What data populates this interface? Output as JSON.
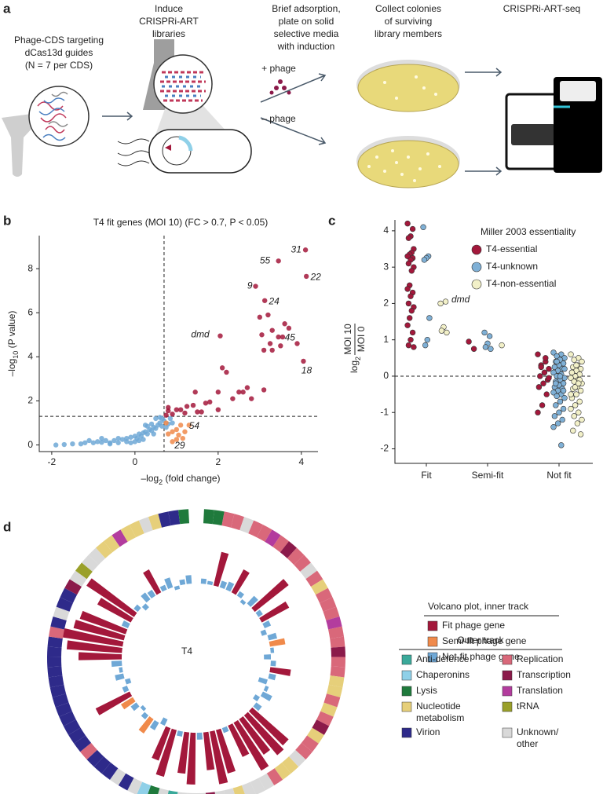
{
  "panel_a": {
    "label": "a",
    "steps": [
      [
        "Phage-CDS targeting",
        "dCas13d guides",
        "(N = 7 per CDS)"
      ],
      [
        "Induce",
        "CRISPRi-ART",
        "libraries"
      ],
      [
        "Brief adsorption,",
        "plate on solid",
        "selective media",
        "with induction"
      ],
      [
        "Collect colonies",
        "of surviving",
        "library members"
      ],
      [
        "CRISPRi-ART-seq"
      ]
    ],
    "plus": "+ phage",
    "minus": "– phage"
  },
  "chart_data": [
    {
      "type": "scatter",
      "panel": "b",
      "title": "T4 fit genes (MOI 10) (FC > 0.7, P < 0.05)",
      "xlabel": [
        "–log",
        "2",
        " (fold change)"
      ],
      "ylabel": [
        "–log",
        "10",
        " (P value)"
      ],
      "xlim": [
        -2.3,
        4.4
      ],
      "ylim": [
        -0.3,
        9.5
      ],
      "xticks": [
        -2,
        0,
        2,
        4
      ],
      "yticks": [
        0,
        2,
        4,
        6,
        8
      ],
      "vline": 0.7,
      "hline": 1.3,
      "series": [
        {
          "color": "#a3183b",
          "x": [
            4.1,
            3.45,
            4.12,
            2.9,
            3.12,
            2.05,
            3.45,
            4.05,
            3.0,
            3.2,
            3.6,
            3.7,
            3.3,
            3.05,
            3.5,
            3.3,
            3.1,
            3.9,
            3.55,
            3.25,
            2.1,
            2.2,
            2.7,
            2.6,
            2.5,
            3.1,
            2.0,
            2.35,
            2.8,
            1.8,
            1.7,
            1.4,
            1.25,
            1.1,
            1.0,
            0.8,
            1.5,
            2.0,
            0.9,
            0.8,
            1.2,
            1.6,
            1.45,
            0.75
          ],
          "y": [
            8.85,
            8.35,
            7.65,
            7.2,
            6.55,
            4.95,
            4.9,
            3.8,
            5.8,
            5.9,
            5.5,
            5.3,
            5.2,
            5.0,
            4.5,
            4.3,
            4.3,
            4.6,
            4.9,
            4.6,
            3.5,
            3.3,
            2.6,
            2.4,
            2.4,
            2.5,
            2.4,
            2.1,
            2.1,
            1.95,
            1.9,
            1.8,
            1.75,
            1.6,
            1.6,
            1.55,
            1.5,
            1.6,
            1.4,
            1.7,
            1.45,
            1.5,
            2.4,
            1.35
          ]
        },
        {
          "color": "#f08a4b",
          "x": [
            1.1,
            1.0,
            0.9,
            1.2,
            0.8,
            1.15,
            1.0,
            0.9,
            1.3,
            0.75,
            1.05
          ],
          "y": [
            0.9,
            0.7,
            0.6,
            0.6,
            0.5,
            0.3,
            0.25,
            0.15,
            0.9,
            1.0,
            0.45
          ]
        },
        {
          "color": "#6fa8d6",
          "x": [
            -1.9,
            -1.7,
            -1.5,
            -1.3,
            -1.2,
            -1.0,
            -0.9,
            -0.8,
            -0.7,
            -0.6,
            -0.5,
            -0.4,
            -0.3,
            -0.2,
            -0.1,
            0,
            0.05,
            0.1,
            0.15,
            0.2,
            0.25,
            0.3,
            0.35,
            0.4,
            0.45,
            0.5,
            0.55,
            0.6,
            0.65,
            0.7,
            0.5,
            0.6,
            0.4,
            0.3,
            -0.2,
            -0.4,
            -0.6,
            0,
            0.2,
            0.1,
            -0.1,
            0.8,
            0.75,
            0.85,
            0.9,
            0.65,
            0.45,
            -0.8,
            -1.1,
            0.25
          ],
          "y": [
            0,
            0.02,
            0.05,
            0.05,
            0.1,
            0.1,
            0.15,
            0.12,
            0.2,
            0.1,
            0.2,
            0.3,
            0.25,
            0.3,
            0.35,
            0.4,
            0.3,
            0.5,
            0.4,
            0.55,
            0.6,
            0.5,
            0.7,
            0.65,
            0.8,
            0.75,
            0.9,
            1.0,
            0.85,
            1.1,
            1.2,
            1.25,
            0.95,
            0.85,
            0.15,
            0.1,
            0.05,
            0.15,
            0.25,
            0.2,
            0.1,
            0.95,
            0.8,
            1.2,
            1.0,
            1.2,
            0.5,
            0.3,
            0.2,
            0.9
          ]
        }
      ],
      "annotations": [
        {
          "text": "31",
          "x": 3.75,
          "y": 8.85,
          "color": "#a3183b"
        },
        {
          "text": "55",
          "x": 3.0,
          "y": 8.35,
          "color": "#a3183b"
        },
        {
          "text": "22",
          "x": 4.22,
          "y": 7.6,
          "color": "#a3183b"
        },
        {
          "text": "9",
          "x": 2.7,
          "y": 7.2,
          "color": "#a3183b"
        },
        {
          "text": "24",
          "x": 3.22,
          "y": 6.5,
          "color": "#a3183b"
        },
        {
          "text": "dmd",
          "x": 1.35,
          "y": 5.0,
          "color": "#a3183b"
        },
        {
          "text": "45",
          "x": 3.6,
          "y": 4.85,
          "color": "#a3183b"
        },
        {
          "text": "18",
          "x": 4.0,
          "y": 3.35,
          "color": "#a3183b"
        },
        {
          "text": "54",
          "x": 1.3,
          "y": 0.85,
          "color": "#f08a4b"
        },
        {
          "text": "29",
          "x": 0.95,
          "y": -0.05,
          "color": "#f08a4b"
        }
      ]
    },
    {
      "type": "strip",
      "panel": "c",
      "ylabel": {
        "log": "log",
        "sub": "2",
        "num": "MOI 10",
        "den": "MOI 0"
      },
      "categories": [
        "Fit",
        "Semi-fit",
        "Not fit"
      ],
      "ylim": [
        -2.4,
        4.3
      ],
      "yticks": [
        -2,
        -1,
        0,
        1,
        2,
        3,
        4
      ],
      "hline": 0,
      "legend_title": "Miller 2003 essentiality",
      "series": [
        {
          "name": "T4-essential",
          "color": "#a3183b",
          "values": [
            [
              4.2,
              4.05,
              3.85,
              3.8,
              3.5,
              3.4,
              3.35,
              3.3,
              3.25,
              3.2,
              3.1,
              3.0,
              2.9,
              2.5,
              2.4,
              2.3,
              2.2,
              2.0,
              1.9,
              1.8,
              1.6,
              1.4,
              1.2,
              1.0,
              0.85,
              0.8
            ],
            [
              0.95,
              0.75
            ],
            [
              0.6,
              0.4,
              0.3,
              0.2,
              0.1,
              0,
              -0.1,
              -0.2,
              -0.3,
              -0.5,
              -0.8,
              -1.0,
              0.5,
              0.25,
              -0.05
            ]
          ]
        },
        {
          "name": "T4-unknown",
          "color": "#7fb0d6",
          "values": [
            [
              4.1,
              3.3,
              3.25,
              3.2,
              1.6,
              1.0,
              0.85
            ],
            [
              1.2,
              1.1,
              0.9,
              0.8,
              0.75
            ],
            [
              0.65,
              0.6,
              0.55,
              0.5,
              0.45,
              0.4,
              0.35,
              0.3,
              0.25,
              0.2,
              0.15,
              0.1,
              0.05,
              0,
              -0.05,
              -0.1,
              -0.15,
              -0.2,
              -0.25,
              -0.3,
              -0.35,
              -0.4,
              -0.45,
              -0.5,
              -0.55,
              -0.6,
              -0.7,
              -0.8,
              -0.9,
              -1.0,
              -1.1,
              -1.2,
              -1.3,
              -1.4,
              -1.9,
              0.4,
              0.2,
              0,
              -0.2,
              -0.4
            ]
          ]
        },
        {
          "name": "T4-non-essential",
          "color": "#f2f0c8",
          "values": [
            [
              2.0,
              2.05,
              1.35,
              1.25,
              1.2
            ],
            [
              0.85
            ],
            [
              0.6,
              0.5,
              0.45,
              0.4,
              0.3,
              0.25,
              0.2,
              0.15,
              0.1,
              0.05,
              0,
              -0.05,
              -0.1,
              -0.15,
              -0.2,
              -0.3,
              -0.35,
              -0.4,
              -0.5,
              -0.6,
              -0.7,
              -0.8,
              -0.9,
              -1.0,
              -1.1,
              -1.2,
              -1.3,
              -1.5,
              -1.6,
              0.3,
              0.1,
              -0.1,
              -0.3,
              -0.5,
              -0.2
            ]
          ]
        }
      ],
      "annotations": [
        {
          "text": "dmd",
          "y": 2.1
        }
      ]
    },
    {
      "type": "circular",
      "panel": "d",
      "center_label": "T4",
      "outer_track": [
        2,
        2,
        5,
        5,
        9,
        5,
        5,
        7,
        5,
        6,
        5,
        5,
        9,
        5,
        3,
        5,
        5,
        5,
        7,
        5,
        5,
        6,
        5,
        5,
        3,
        3,
        5,
        3,
        5,
        6,
        3,
        5,
        5,
        9,
        3,
        3,
        5,
        9,
        9,
        9,
        3,
        9,
        9,
        6,
        9,
        9,
        9,
        0,
        9,
        2,
        1,
        9,
        4,
        9,
        4,
        4,
        4,
        5,
        4,
        4,
        4,
        4,
        4,
        4,
        4,
        4,
        4,
        4,
        4,
        4,
        5,
        4,
        9,
        4,
        4,
        6,
        9,
        8,
        9,
        9,
        3,
        3,
        7,
        3,
        3,
        9,
        3,
        4,
        4,
        2
      ],
      "inner_track": {
        "values": [
          0.3,
          0.2,
          2.0,
          0.4,
          0.5,
          1.5,
          0.3,
          -0.2,
          0.6,
          2.5,
          0.3,
          1.8,
          0.4,
          -0.3,
          0.5,
          0.9,
          0.2,
          -0.4,
          0.3,
          1.2,
          0.4,
          -0.5,
          0.2,
          0.6,
          -0.3,
          0.4,
          2.8,
          3.0,
          2.5,
          3.2,
          2.0,
          0.3,
          2.6,
          3.1,
          2.2,
          0.4,
          3.0,
          2.4,
          0.3,
          2.8,
          2.0,
          -0.4,
          0.5,
          1.0,
          0.3,
          -0.2,
          0.4,
          0.8,
          2.2,
          0.3,
          -0.3,
          0.5,
          0.2,
          0.6,
          2.5,
          3.2,
          3.5,
          3.0,
          2.8,
          0.4,
          2.2,
          3.3,
          0.3,
          -0.3,
          0.5,
          0.4,
          1.5,
          0.3,
          0.6,
          -0.2,
          0.3,
          0.5
        ],
        "classes": [
          2,
          2,
          0,
          2,
          2,
          0,
          2,
          2,
          2,
          0,
          2,
          0,
          2,
          2,
          2,
          1,
          2,
          2,
          2,
          0,
          2,
          2,
          2,
          2,
          2,
          2,
          0,
          0,
          0,
          0,
          0,
          2,
          0,
          0,
          0,
          2,
          0,
          0,
          2,
          0,
          0,
          2,
          2,
          1,
          2,
          2,
          2,
          1,
          0,
          2,
          2,
          2,
          2,
          2,
          0,
          0,
          0,
          0,
          0,
          2,
          0,
          0,
          2,
          2,
          2,
          2,
          0,
          2,
          2,
          2,
          2,
          2
        ]
      },
      "inner_legend": {
        "title": "Volcano plot, inner track",
        "items": [
          {
            "name": "Fit phage gene",
            "color": "#a3183b"
          },
          {
            "name": "Semi-fit phage gene",
            "color": "#f08a4b"
          },
          {
            "name": "Not-fit phage gene",
            "color": "#6fa8d6"
          }
        ]
      },
      "outer_legend": {
        "title": "Outer track",
        "items": [
          {
            "name": "Anti-defence",
            "color": "#3aa99a"
          },
          {
            "name": "Chaperonins",
            "color": "#8fd0e8"
          },
          {
            "name": "Lysis",
            "color": "#1f7a3c"
          },
          {
            "name": [
              "Nucleotide",
              "metabolism"
            ],
            "color": "#e6cf7a"
          },
          {
            "name": "Virion",
            "color": "#2e2a8a"
          },
          {
            "name": "Replication",
            "color": "#d9687a"
          },
          {
            "name": "Transcription",
            "color": "#8b1a4a"
          },
          {
            "name": "Translation",
            "color": "#b33c9e"
          },
          {
            "name": "tRNA",
            "color": "#9aa02a"
          },
          {
            "name": [
              "Unknown/",
              "other"
            ],
            "color": "#d9d9d9"
          }
        ]
      }
    }
  ]
}
